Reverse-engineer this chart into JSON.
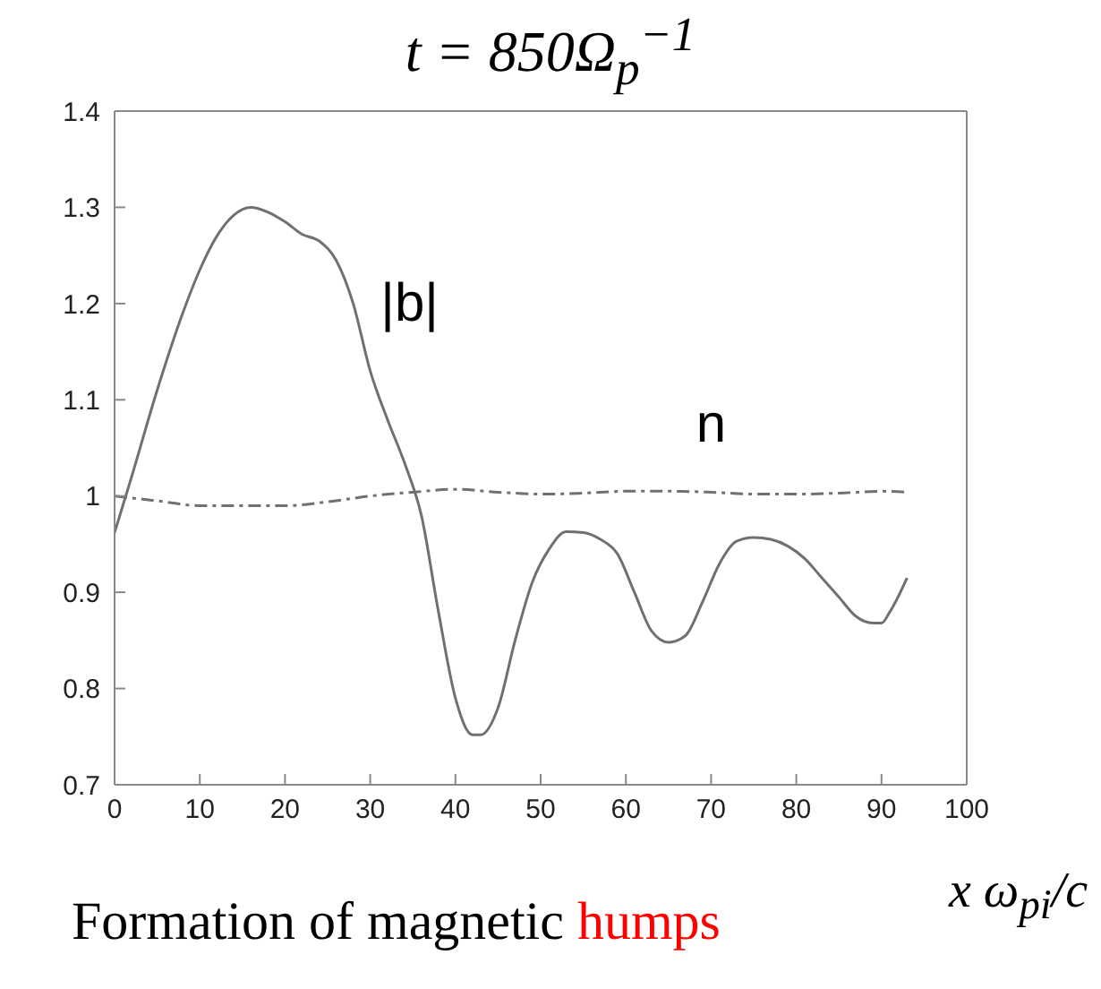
{
  "chart_data": {
    "type": "line",
    "title": "t = 850Ω$_{p}$$^{−1}$",
    "xlabel": "x ω$_{pi}$/c",
    "xlim": [
      0,
      100
    ],
    "xticks": [
      0,
      10,
      20,
      30,
      40,
      50,
      60,
      70,
      80,
      90,
      100
    ],
    "ylim": [
      0.7,
      1.4
    ],
    "yticks": [
      0.7,
      0.8,
      0.9,
      1,
      1.1,
      1.2,
      1.3,
      1.4
    ],
    "marker": "none",
    "series": [
      {
        "name": "|b|",
        "color": "#707070",
        "line_style": "solid",
        "x": [
          0,
          2,
          5,
          8,
          10,
          12,
          14,
          16,
          18,
          20,
          22,
          24,
          26,
          28,
          30,
          32,
          34,
          36,
          38,
          40,
          42,
          43,
          45,
          47,
          49,
          51,
          53,
          55,
          57,
          59,
          61,
          63,
          65,
          67,
          69,
          71,
          73,
          75,
          77,
          79,
          81,
          83,
          85,
          87,
          89,
          90,
          91,
          93
        ],
        "values": [
          0.962,
          1.02,
          1.11,
          1.19,
          1.235,
          1.27,
          1.292,
          1.3,
          1.295,
          1.285,
          1.272,
          1.265,
          1.245,
          1.2,
          1.13,
          1.08,
          1.035,
          0.98,
          0.88,
          0.79,
          0.752,
          0.752,
          0.78,
          0.85,
          0.91,
          0.945,
          0.963,
          0.962,
          0.955,
          0.94,
          0.9,
          0.86,
          0.848,
          0.855,
          0.89,
          0.93,
          0.953,
          0.957,
          0.955,
          0.948,
          0.935,
          0.915,
          0.895,
          0.875,
          0.868,
          0.868,
          0.88,
          0.915
        ]
      },
      {
        "name": "n",
        "color": "#707070",
        "line_style": "dashed",
        "x": [
          0,
          5,
          10,
          15,
          20,
          25,
          30,
          35,
          40,
          45,
          50,
          55,
          60,
          65,
          70,
          75,
          80,
          85,
          90,
          93
        ],
        "values": [
          1.0,
          0.995,
          0.99,
          0.99,
          0.99,
          0.994,
          1.0,
          1.004,
          1.007,
          1.004,
          1.002,
          1.003,
          1.005,
          1.005,
          1.004,
          1.002,
          1.002,
          1.003,
          1.005,
          1.004
        ]
      }
    ],
    "annotations": [
      "Formation of magnetic",
      "humps"
    ]
  }
}
